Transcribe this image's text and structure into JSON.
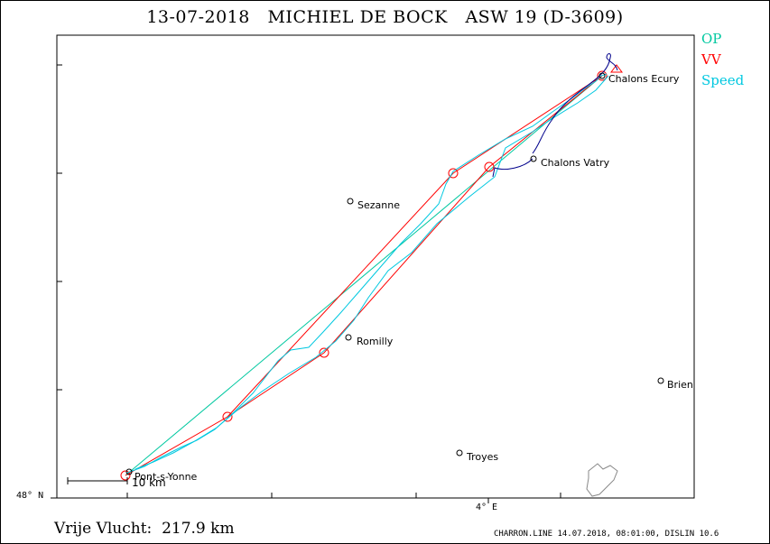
{
  "title": "13-07-2018   MICHIEL DE BOCK   ASW 19 (D-3609)",
  "legend": {
    "op": {
      "label": "OP",
      "color": "#00c8a0"
    },
    "vv": {
      "label": "VV",
      "color": "#ff0000"
    },
    "speed": {
      "label": "Speed",
      "color": "#00c8e0"
    }
  },
  "places": [
    {
      "name": "Chalons Ecury",
      "id": "chalons-ecury"
    },
    {
      "name": "Chalons Vatry",
      "id": "chalons-vatry"
    },
    {
      "name": "Sezanne",
      "id": "sezanne"
    },
    {
      "name": "Romilly",
      "id": "romilly"
    },
    {
      "name": "Brien",
      "id": "brien"
    },
    {
      "name": "Troyes",
      "id": "troyes"
    },
    {
      "name": "Pont-s-Yonne",
      "id": "pont-s-yonne"
    }
  ],
  "scale_bar": "10 km",
  "axis": {
    "lat_label": "48° N",
    "lon_label": "4° E"
  },
  "footer": {
    "distance": "Vrije Vlucht:  217.9 km",
    "info": "CHARRON.LINE 14.07.2018, 08:01:00, DISLIN 10.6"
  },
  "colors": {
    "track": "#00c8e0",
    "task": "#ff0000",
    "op": "#00c8a0",
    "trace": "#00008b"
  }
}
